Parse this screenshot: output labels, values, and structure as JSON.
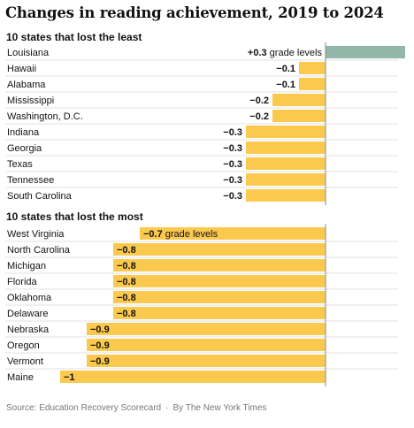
{
  "title": "Changes in reading achievement, 2019 to 2024",
  "source": "Source: Education Recovery Scorecard",
  "credit": "By The New York Times",
  "colors": {
    "negative": "#fcc94f",
    "positive": "#92b8a9",
    "zero_line": "#8a8a8a",
    "row_divider": "#e2e2e2"
  },
  "chart_data": [
    {
      "type": "bar",
      "orientation": "horizontal",
      "title": "10 states that lost the least",
      "unit": "grade levels",
      "categories": [
        "Louisiana",
        "Hawaii",
        "Alabama",
        "Mississippi",
        "Washington, D.C.",
        "Indiana",
        "Georgia",
        "Texas",
        "Tennessee",
        "South Carolina"
      ],
      "values": [
        0.3,
        -0.1,
        -0.1,
        -0.2,
        -0.2,
        -0.3,
        -0.3,
        -0.3,
        -0.3,
        -0.3
      ],
      "value_labels": [
        "+0.3",
        "−0.1",
        "−0.1",
        "−0.2",
        "−0.2",
        "−0.3",
        "−0.3",
        "−0.3",
        "−0.3",
        "−0.3"
      ],
      "unit_label_row": 0
    },
    {
      "type": "bar",
      "orientation": "horizontal",
      "title": "10 states that lost the most",
      "unit": "grade levels",
      "categories": [
        "West Virginia",
        "North Carolina",
        "Michigan",
        "Florida",
        "Oklahoma",
        "Delaware",
        "Nebraska",
        "Oregon",
        "Vermont",
        "Maine"
      ],
      "values": [
        -0.7,
        -0.8,
        -0.8,
        -0.8,
        -0.8,
        -0.8,
        -0.9,
        -0.9,
        -0.9,
        -1.0
      ],
      "value_labels": [
        "−0.7",
        "−0.8",
        "−0.8",
        "−0.8",
        "−0.8",
        "−0.8",
        "−0.9",
        "−0.9",
        "−0.9",
        "−1"
      ],
      "unit_label_row": 0
    }
  ]
}
